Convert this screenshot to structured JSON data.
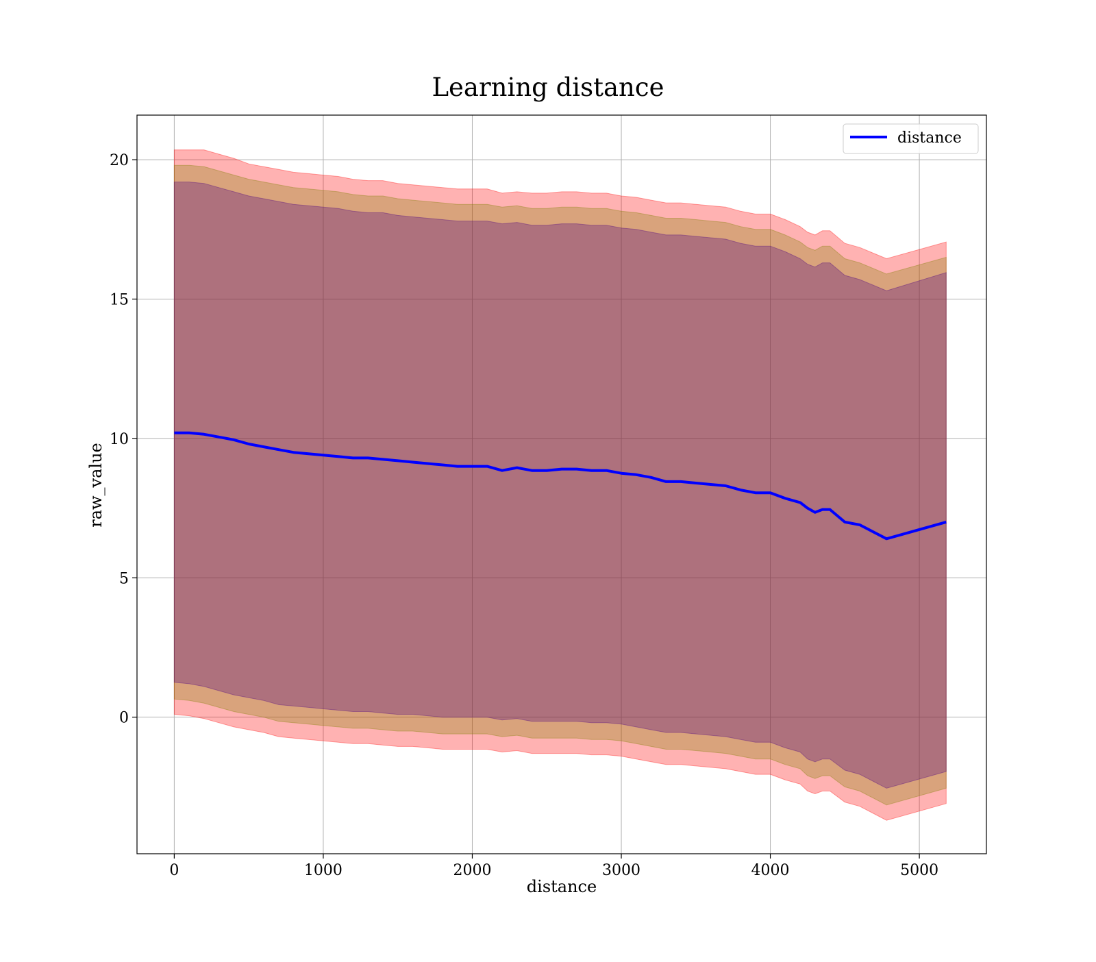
{
  "chart_data": {
    "type": "line",
    "title": "Learning distance",
    "xlabel": "distance",
    "ylabel": "raw_value",
    "xlim": [
      -250,
      5450
    ],
    "ylim": [
      -4.9,
      21.6
    ],
    "xticks": [
      0,
      1000,
      2000,
      3000,
      4000,
      5000
    ],
    "yticks": [
      0,
      5,
      10,
      15,
      20
    ],
    "xtick_labels": [
      "0",
      "1000",
      "2000",
      "3000",
      "4000",
      "5000"
    ],
    "ytick_labels": [
      "0",
      "5",
      "10",
      "15",
      "20"
    ],
    "grid": true,
    "legend": {
      "position": "top-right",
      "entries": [
        {
          "label": "distance",
          "color": "#0000ff"
        }
      ]
    },
    "series": [
      {
        "name": "distance",
        "color": "#0000ff",
        "x": [
          0,
          100,
          200,
          300,
          400,
          500,
          600,
          700,
          800,
          900,
          1000,
          1100,
          1200,
          1300,
          1400,
          1500,
          1600,
          1700,
          1800,
          1900,
          2000,
          2100,
          2200,
          2300,
          2400,
          2500,
          2600,
          2700,
          2800,
          2900,
          3000,
          3100,
          3200,
          3300,
          3400,
          3500,
          3600,
          3700,
          3800,
          3900,
          4000,
          4100,
          4200,
          4250,
          4300,
          4350,
          4400,
          4500,
          4600,
          4780,
          5180
        ],
        "y": [
          10.2,
          10.2,
          10.15,
          10.05,
          9.95,
          9.8,
          9.7,
          9.6,
          9.5,
          9.45,
          9.4,
          9.35,
          9.3,
          9.3,
          9.25,
          9.2,
          9.15,
          9.1,
          9.05,
          9.0,
          9.0,
          9.0,
          8.85,
          8.95,
          8.85,
          8.85,
          8.9,
          8.9,
          8.85,
          8.85,
          8.75,
          8.7,
          8.6,
          8.45,
          8.45,
          8.4,
          8.35,
          8.3,
          8.15,
          8.05,
          8.05,
          7.85,
          7.7,
          7.5,
          7.35,
          7.45,
          7.45,
          7.0,
          6.9,
          6.4,
          7.0
        ]
      }
    ],
    "bands": [
      {
        "name": "outer band",
        "color": "#ff0000",
        "opacity": 0.3,
        "x": [
          0,
          100,
          200,
          300,
          400,
          500,
          600,
          700,
          800,
          900,
          1000,
          1100,
          1200,
          1300,
          1400,
          1500,
          1600,
          1700,
          1800,
          1900,
          2000,
          2100,
          2200,
          2300,
          2400,
          2500,
          2600,
          2700,
          2800,
          2900,
          3000,
          3100,
          3200,
          3300,
          3400,
          3500,
          3600,
          3700,
          3800,
          3900,
          4000,
          4100,
          4200,
          4250,
          4300,
          4350,
          4400,
          4500,
          4600,
          4780,
          5180
        ],
        "upper": [
          20.35,
          20.35,
          20.35,
          20.2,
          20.05,
          19.85,
          19.75,
          19.65,
          19.55,
          19.5,
          19.45,
          19.4,
          19.3,
          19.25,
          19.25,
          19.15,
          19.1,
          19.05,
          19.0,
          18.95,
          18.95,
          18.95,
          18.8,
          18.85,
          18.8,
          18.8,
          18.85,
          18.85,
          18.8,
          18.8,
          18.7,
          18.65,
          18.55,
          18.45,
          18.45,
          18.4,
          18.35,
          18.3,
          18.15,
          18.05,
          18.05,
          17.85,
          17.6,
          17.4,
          17.3,
          17.45,
          17.45,
          17.0,
          16.85,
          16.45,
          17.05
        ],
        "lower": [
          0.1,
          0.05,
          -0.05,
          -0.2,
          -0.35,
          -0.45,
          -0.55,
          -0.7,
          -0.75,
          -0.8,
          -0.85,
          -0.9,
          -0.95,
          -0.95,
          -1.0,
          -1.05,
          -1.05,
          -1.1,
          -1.15,
          -1.15,
          -1.15,
          -1.15,
          -1.25,
          -1.2,
          -1.3,
          -1.3,
          -1.3,
          -1.3,
          -1.35,
          -1.35,
          -1.4,
          -1.5,
          -1.6,
          -1.7,
          -1.7,
          -1.75,
          -1.8,
          -1.85,
          -1.95,
          -2.05,
          -2.05,
          -2.25,
          -2.4,
          -2.65,
          -2.75,
          -2.65,
          -2.65,
          -3.05,
          -3.2,
          -3.7,
          -3.1
        ]
      },
      {
        "name": "middle band",
        "color": "#808000",
        "opacity": 0.3,
        "x": [
          0,
          100,
          200,
          300,
          400,
          500,
          600,
          700,
          800,
          900,
          1000,
          1100,
          1200,
          1300,
          1400,
          1500,
          1600,
          1700,
          1800,
          1900,
          2000,
          2100,
          2200,
          2300,
          2400,
          2500,
          2600,
          2700,
          2800,
          2900,
          3000,
          3100,
          3200,
          3300,
          3400,
          3500,
          3600,
          3700,
          3800,
          3900,
          4000,
          4100,
          4200,
          4250,
          4300,
          4350,
          4400,
          4500,
          4600,
          4780,
          5180
        ],
        "upper": [
          19.8,
          19.8,
          19.75,
          19.6,
          19.45,
          19.3,
          19.2,
          19.1,
          19.0,
          18.95,
          18.9,
          18.85,
          18.75,
          18.7,
          18.7,
          18.6,
          18.55,
          18.5,
          18.45,
          18.4,
          18.4,
          18.4,
          18.3,
          18.35,
          18.25,
          18.25,
          18.3,
          18.3,
          18.25,
          18.25,
          18.15,
          18.1,
          18.0,
          17.9,
          17.9,
          17.85,
          17.8,
          17.75,
          17.6,
          17.5,
          17.5,
          17.3,
          17.05,
          16.85,
          16.75,
          16.9,
          16.9,
          16.45,
          16.3,
          15.9,
          16.5
        ],
        "lower": [
          0.65,
          0.6,
          0.5,
          0.35,
          0.2,
          0.1,
          0.0,
          -0.15,
          -0.2,
          -0.25,
          -0.3,
          -0.35,
          -0.4,
          -0.4,
          -0.45,
          -0.5,
          -0.5,
          -0.55,
          -0.6,
          -0.6,
          -0.6,
          -0.6,
          -0.7,
          -0.65,
          -0.75,
          -0.75,
          -0.75,
          -0.75,
          -0.8,
          -0.8,
          -0.85,
          -0.95,
          -1.05,
          -1.15,
          -1.15,
          -1.2,
          -1.25,
          -1.3,
          -1.4,
          -1.5,
          -1.5,
          -1.7,
          -1.85,
          -2.1,
          -2.2,
          -2.1,
          -2.1,
          -2.5,
          -2.65,
          -3.15,
          -2.55
        ]
      },
      {
        "name": "inner band",
        "color": "#4b0082",
        "opacity": 0.3,
        "x": [
          0,
          100,
          200,
          300,
          400,
          500,
          600,
          700,
          800,
          900,
          1000,
          1100,
          1200,
          1300,
          1400,
          1500,
          1600,
          1700,
          1800,
          1900,
          2000,
          2100,
          2200,
          2300,
          2400,
          2500,
          2600,
          2700,
          2800,
          2900,
          3000,
          3100,
          3200,
          3300,
          3400,
          3500,
          3600,
          3700,
          3800,
          3900,
          4000,
          4100,
          4200,
          4250,
          4300,
          4350,
          4400,
          4500,
          4600,
          4780,
          5180
        ],
        "upper": [
          19.2,
          19.2,
          19.15,
          19.0,
          18.85,
          18.7,
          18.6,
          18.5,
          18.4,
          18.35,
          18.3,
          18.25,
          18.15,
          18.1,
          18.1,
          18.0,
          17.95,
          17.9,
          17.85,
          17.8,
          17.8,
          17.8,
          17.7,
          17.75,
          17.65,
          17.65,
          17.7,
          17.7,
          17.65,
          17.65,
          17.55,
          17.5,
          17.4,
          17.3,
          17.3,
          17.25,
          17.2,
          17.15,
          17.0,
          16.9,
          16.9,
          16.7,
          16.45,
          16.25,
          16.15,
          16.3,
          16.3,
          15.85,
          15.7,
          15.3,
          15.95
        ],
        "lower": [
          1.25,
          1.2,
          1.1,
          0.95,
          0.8,
          0.7,
          0.6,
          0.45,
          0.4,
          0.35,
          0.3,
          0.25,
          0.2,
          0.2,
          0.15,
          0.1,
          0.1,
          0.05,
          0.0,
          0.0,
          0.0,
          0.0,
          -0.1,
          -0.05,
          -0.15,
          -0.15,
          -0.15,
          -0.15,
          -0.2,
          -0.2,
          -0.25,
          -0.35,
          -0.45,
          -0.55,
          -0.55,
          -0.6,
          -0.65,
          -0.7,
          -0.8,
          -0.9,
          -0.9,
          -1.1,
          -1.25,
          -1.5,
          -1.6,
          -1.5,
          -1.5,
          -1.9,
          -2.05,
          -2.55,
          -1.95
        ]
      }
    ]
  }
}
